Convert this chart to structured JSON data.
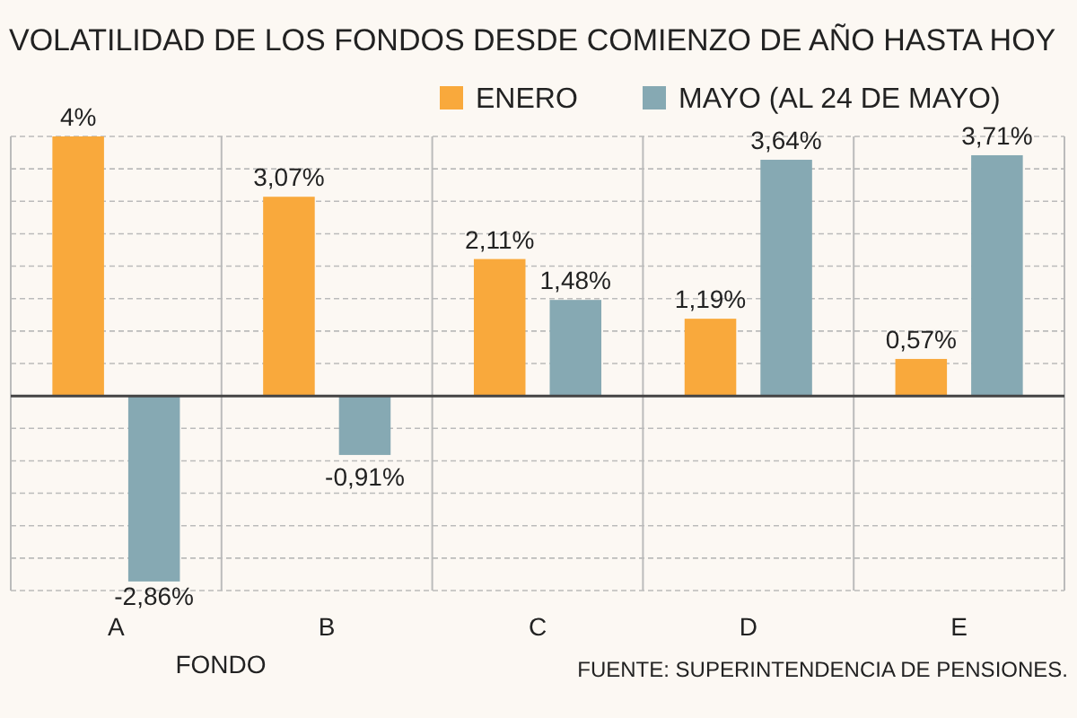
{
  "chart_data": {
    "type": "bar",
    "title": "VOLATILIDAD DE LOS FONDOS DESDE COMIENZO DE AÑO HASTA HOY",
    "xlabel": "FONDO",
    "categories": [
      "A",
      "B",
      "C",
      "D",
      "E"
    ],
    "series": [
      {
        "name": "ENERO",
        "color": "#f9a93c",
        "values": [
          4,
          3.07,
          2.11,
          1.19,
          0.57
        ],
        "value_labels": [
          "4%",
          "3,07%",
          "2,11%",
          "1,19%",
          "0,57%"
        ]
      },
      {
        "name": "MAYO (AL 24 DE MAYO)",
        "color": "#86a9b3",
        "values": [
          -2.86,
          -0.91,
          1.48,
          3.64,
          3.71
        ],
        "value_labels": [
          "-2,86%",
          "-0,91%",
          "1,48%",
          "3,64%",
          "3,71%"
        ]
      }
    ],
    "ylim": [
      -3,
      4
    ],
    "yticks": [
      {
        "value": -3,
        "label": null
      },
      {
        "value": -2.5,
        "label": null
      },
      {
        "value": -2,
        "label": null
      },
      {
        "value": -1.5,
        "label": null
      },
      {
        "value": -1,
        "label": null
      },
      {
        "value": -0.5,
        "label": null
      },
      {
        "value": 0,
        "label": null
      },
      {
        "value": 0.5,
        "label": null
      },
      {
        "value": 1,
        "label": null
      },
      {
        "value": 1.5,
        "label": null
      },
      {
        "value": 2,
        "label": null
      },
      {
        "value": 2.5,
        "label": null
      },
      {
        "value": 3,
        "label": null
      },
      {
        "value": 3.5,
        "label": null
      },
      {
        "value": 4,
        "label": null
      }
    ],
    "tick_labels": "x",
    "grid": "y",
    "legend": "top right",
    "annotations": [
      "FUENTE: SUPERINTENDENCIA DE PENSIONES."
    ]
  }
}
